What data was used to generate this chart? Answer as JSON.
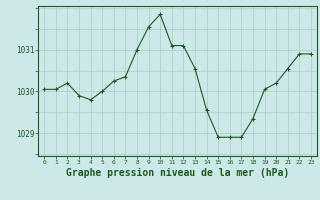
{
  "x": [
    0,
    1,
    2,
    3,
    4,
    5,
    6,
    7,
    8,
    9,
    10,
    11,
    12,
    13,
    14,
    15,
    16,
    17,
    18,
    19,
    20,
    21,
    22,
    23
  ],
  "y": [
    1030.05,
    1030.05,
    1030.2,
    1029.9,
    1029.8,
    1030.0,
    1030.25,
    1030.35,
    1031.0,
    1031.55,
    1031.85,
    1031.1,
    1031.1,
    1030.55,
    1029.55,
    1028.9,
    1028.9,
    1028.9,
    1029.35,
    1030.05,
    1030.2,
    1030.55,
    1030.9,
    1030.9
  ],
  "line_color": "#1a5c1a",
  "marker": "+",
  "bg_color": "#cce8e8",
  "grid_color": "#aacccc",
  "tick_color": "#1a5c1a",
  "xlabel": "Graphe pression niveau de la mer (hPa)",
  "xlabel_fontsize": 7,
  "ylabel_ticks": [
    1029,
    1030,
    1031
  ],
  "ylim": [
    1028.45,
    1032.05
  ],
  "xlim": [
    -0.5,
    23.5
  ],
  "fig_bg": "#cce8e8"
}
